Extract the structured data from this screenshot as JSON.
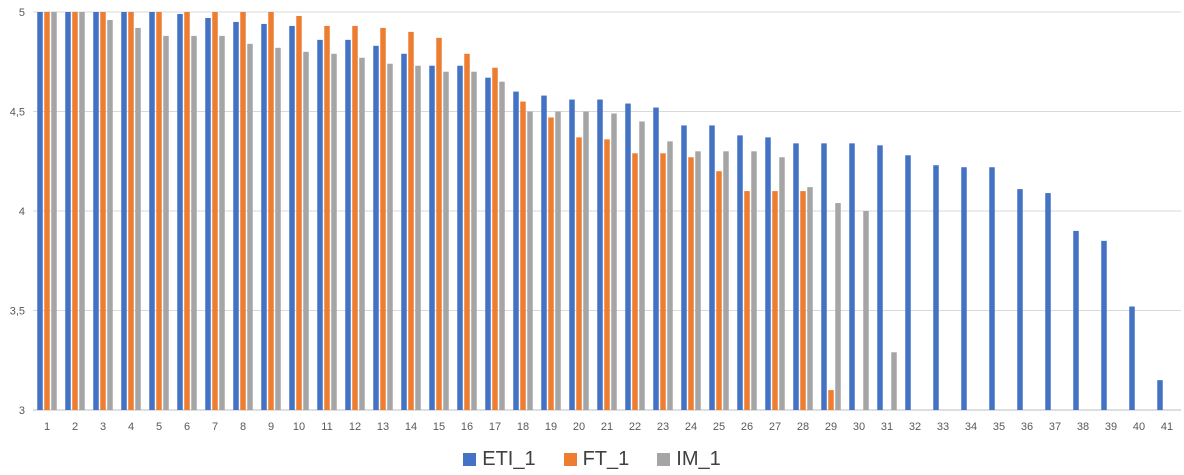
{
  "chart_data": {
    "type": "bar",
    "title": "",
    "xlabel": "",
    "ylabel": "",
    "ylim": [
      3,
      5
    ],
    "yticks": [
      "3",
      "3,5",
      "4",
      "4,5",
      "5"
    ],
    "categories": [
      "1",
      "2",
      "3",
      "4",
      "5",
      "6",
      "7",
      "8",
      "9",
      "10",
      "11",
      "12",
      "13",
      "14",
      "15",
      "16",
      "17",
      "18",
      "19",
      "20",
      "21",
      "22",
      "23",
      "24",
      "25",
      "26",
      "27",
      "28",
      "29",
      "30",
      "31",
      "32",
      "33",
      "34",
      "35",
      "36",
      "37",
      "38",
      "39",
      "40",
      "41"
    ],
    "grid": true,
    "legend_position": "bottom",
    "series": [
      {
        "name": "ETI_1",
        "color": "#4472C4",
        "values": [
          5,
          5,
          5,
          5,
          5,
          4.99,
          4.97,
          4.95,
          4.94,
          4.93,
          4.86,
          4.86,
          4.83,
          4.79,
          4.73,
          4.73,
          4.67,
          4.6,
          4.58,
          4.56,
          4.56,
          4.54,
          4.52,
          4.43,
          4.43,
          4.38,
          4.37,
          4.34,
          4.34,
          4.34,
          4.33,
          4.28,
          4.23,
          4.22,
          4.22,
          4.11,
          4.09,
          3.9,
          3.85,
          3.52,
          3.15
        ]
      },
      {
        "name": "FT_1",
        "color": "#ED7D31",
        "values": [
          5,
          5,
          5,
          5,
          5,
          5,
          5,
          5,
          5,
          4.98,
          4.93,
          4.93,
          4.92,
          4.9,
          4.87,
          4.79,
          4.72,
          4.55,
          4.47,
          4.37,
          4.36,
          4.29,
          4.29,
          4.27,
          4.2,
          4.1,
          4.1,
          4.1,
          3.1,
          null,
          null,
          null,
          null,
          null,
          null,
          null,
          null,
          null,
          null,
          null,
          null
        ]
      },
      {
        "name": "IM_1",
        "color": "#A5A5A5",
        "values": [
          5,
          5,
          4.96,
          4.92,
          4.88,
          4.88,
          4.88,
          4.84,
          4.82,
          4.8,
          4.79,
          4.77,
          4.74,
          4.73,
          4.7,
          4.7,
          4.65,
          4.5,
          4.5,
          4.5,
          4.49,
          4.45,
          4.35,
          4.3,
          4.3,
          4.3,
          4.27,
          4.12,
          4.04,
          4.0,
          3.29,
          null,
          null,
          null,
          null,
          null,
          null,
          null,
          null,
          null,
          null
        ]
      }
    ]
  }
}
